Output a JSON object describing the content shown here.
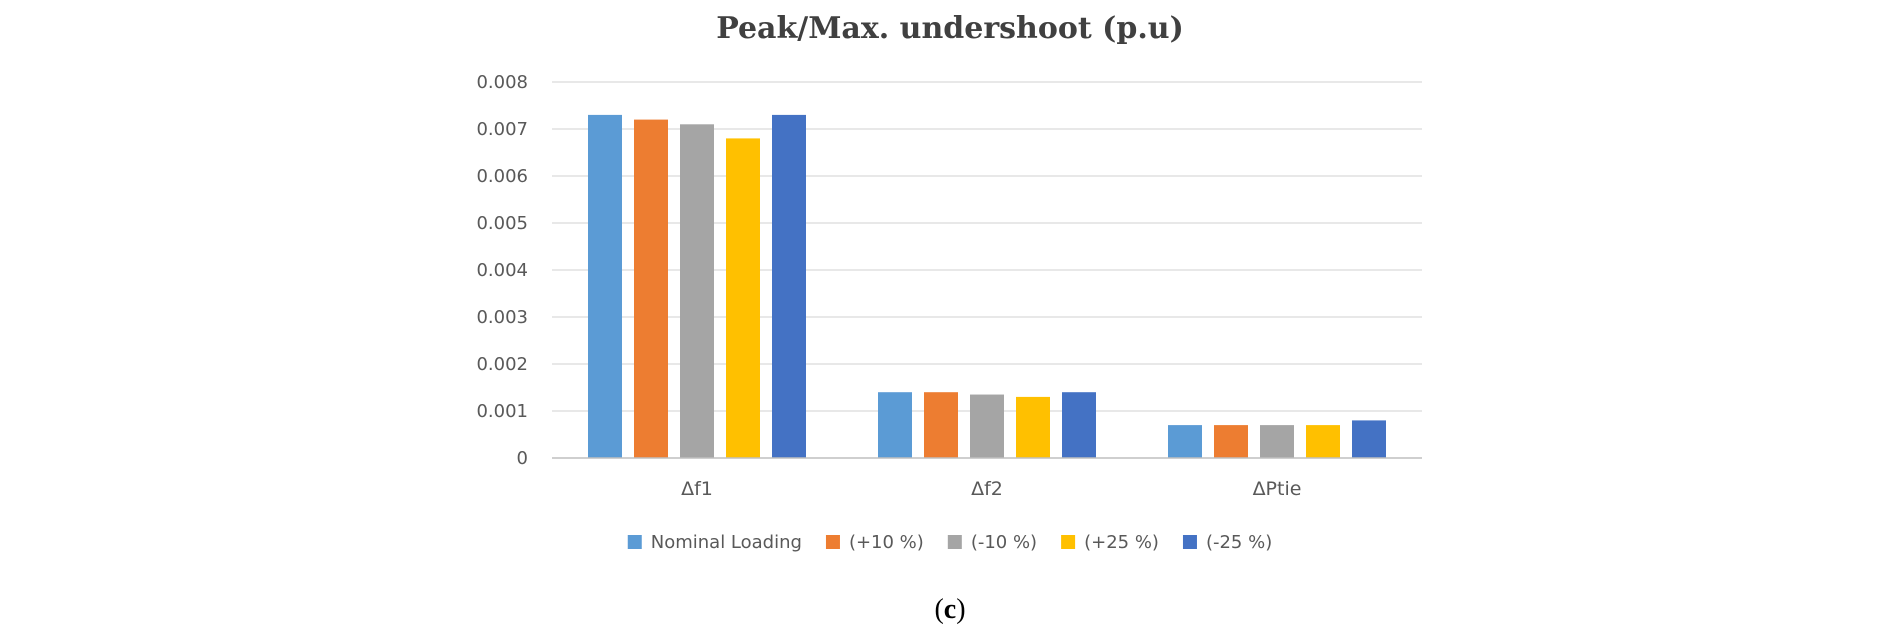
{
  "chart_data": {
    "type": "bar",
    "title": "Peak/Max. undershoot (p.u)",
    "xlabel": "",
    "ylabel": "",
    "ylim": [
      0,
      0.008
    ],
    "yticks": [
      "0",
      "0.001",
      "0.002",
      "0.003",
      "0.004",
      "0.005",
      "0.006",
      "0.007",
      "0.008"
    ],
    "categories": [
      "Δf1",
      "Δf2",
      "ΔPtie"
    ],
    "series": [
      {
        "name": "Nominal Loading",
        "color": "#5b9bd5",
        "values": [
          0.0073,
          0.0014,
          0.0007
        ]
      },
      {
        "name": "(+10 %)",
        "color": "#ed7d31",
        "values": [
          0.0072,
          0.0014,
          0.0007
        ]
      },
      {
        "name": "(-10 %)",
        "color": "#a5a5a5",
        "values": [
          0.0071,
          0.00135,
          0.0007
        ]
      },
      {
        "name": "(+25 %)",
        "color": "#ffc000",
        "values": [
          0.0068,
          0.0013,
          0.0007
        ]
      },
      {
        "name": "(-25 %)",
        "color": "#4472c4",
        "values": [
          0.0073,
          0.0014,
          0.0008
        ]
      }
    ],
    "grid": true,
    "legend_position": "bottom"
  },
  "caption": {
    "open": "(",
    "letter": "c",
    "close": ")"
  }
}
